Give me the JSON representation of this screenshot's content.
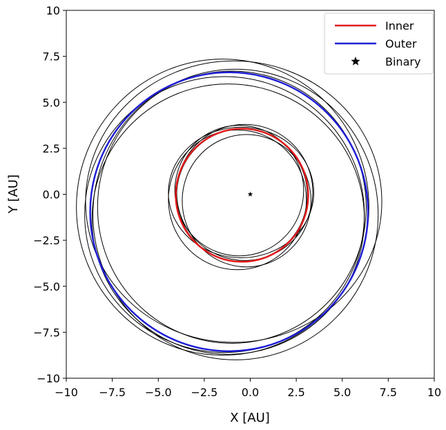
{
  "chart_data": {
    "type": "line",
    "title": "",
    "xlabel": "X [AU]",
    "ylabel": "Y [AU]",
    "xlim": [
      -10,
      10
    ],
    "ylim": [
      -10,
      10
    ],
    "grid": false,
    "legend_position": "top-right",
    "x_ticks": [
      -10,
      -7.5,
      -5.0,
      -2.5,
      0.0,
      2.5,
      5.0,
      7.5,
      10
    ],
    "x_tick_labels": [
      "−10",
      "−7.5",
      "−5.0",
      "−2.5",
      "0.0",
      "2.5",
      "5.0",
      "7.5",
      "10"
    ],
    "y_ticks": [
      10,
      7.5,
      5.0,
      2.5,
      0.0,
      -2.5,
      -5.0,
      -7.5,
      -10
    ],
    "y_tick_labels": [
      "10",
      "7.5",
      "5.0",
      "2.5",
      "0.0",
      "−2.5",
      "−5.0",
      "−7.5",
      "−10"
    ],
    "series": [
      {
        "name": "Inner",
        "color": "#e41a1c",
        "kind": "ellipse",
        "cx": -0.45,
        "cy": -0.05,
        "rx": 3.6,
        "ry": 3.62
      },
      {
        "name": "Outer",
        "color": "#1f1fd6",
        "kind": "ellipse",
        "cx": -1.15,
        "cy": -0.95,
        "rx": 7.55,
        "ry": 7.58
      },
      {
        "name": "Binary",
        "color": "#000000",
        "kind": "marker",
        "x": 0.0,
        "y": 0.0,
        "marker": "star"
      }
    ],
    "sample_orbits": [
      {
        "cx": -0.3,
        "cy": 0.1,
        "rx": 3.7,
        "ry": 3.7
      },
      {
        "cx": -0.7,
        "cy": -0.3,
        "rx": 3.75,
        "ry": 3.8
      },
      {
        "cx": -0.2,
        "cy": -0.35,
        "rx": 3.5,
        "ry": 3.6
      },
      {
        "cx": -0.6,
        "cy": 0.2,
        "rx": 3.5,
        "ry": 3.55
      },
      {
        "cx": -0.45,
        "cy": -0.05,
        "rx": 3.55,
        "ry": 3.6
      },
      {
        "cx": -0.5,
        "cy": 0.1,
        "rx": 3.95,
        "ry": 3.55
      },
      {
        "cx": -0.9,
        "cy": -0.4,
        "rx": 8.05,
        "ry": 7.65
      },
      {
        "cx": -1.5,
        "cy": -0.7,
        "rx": 7.95,
        "ry": 8.05
      },
      {
        "cx": -1.2,
        "cy": -1.35,
        "rx": 7.4,
        "ry": 7.35
      },
      {
        "cx": -0.8,
        "cy": -1.1,
        "rx": 7.75,
        "ry": 7.9
      },
      {
        "cx": -1.4,
        "cy": -1.1,
        "rx": 7.6,
        "ry": 7.5
      },
      {
        "cx": -1.15,
        "cy": -0.95,
        "rx": 7.55,
        "ry": 7.6
      },
      {
        "cx": -1.0,
        "cy": -0.7,
        "rx": 7.3,
        "ry": 7.4
      }
    ]
  }
}
